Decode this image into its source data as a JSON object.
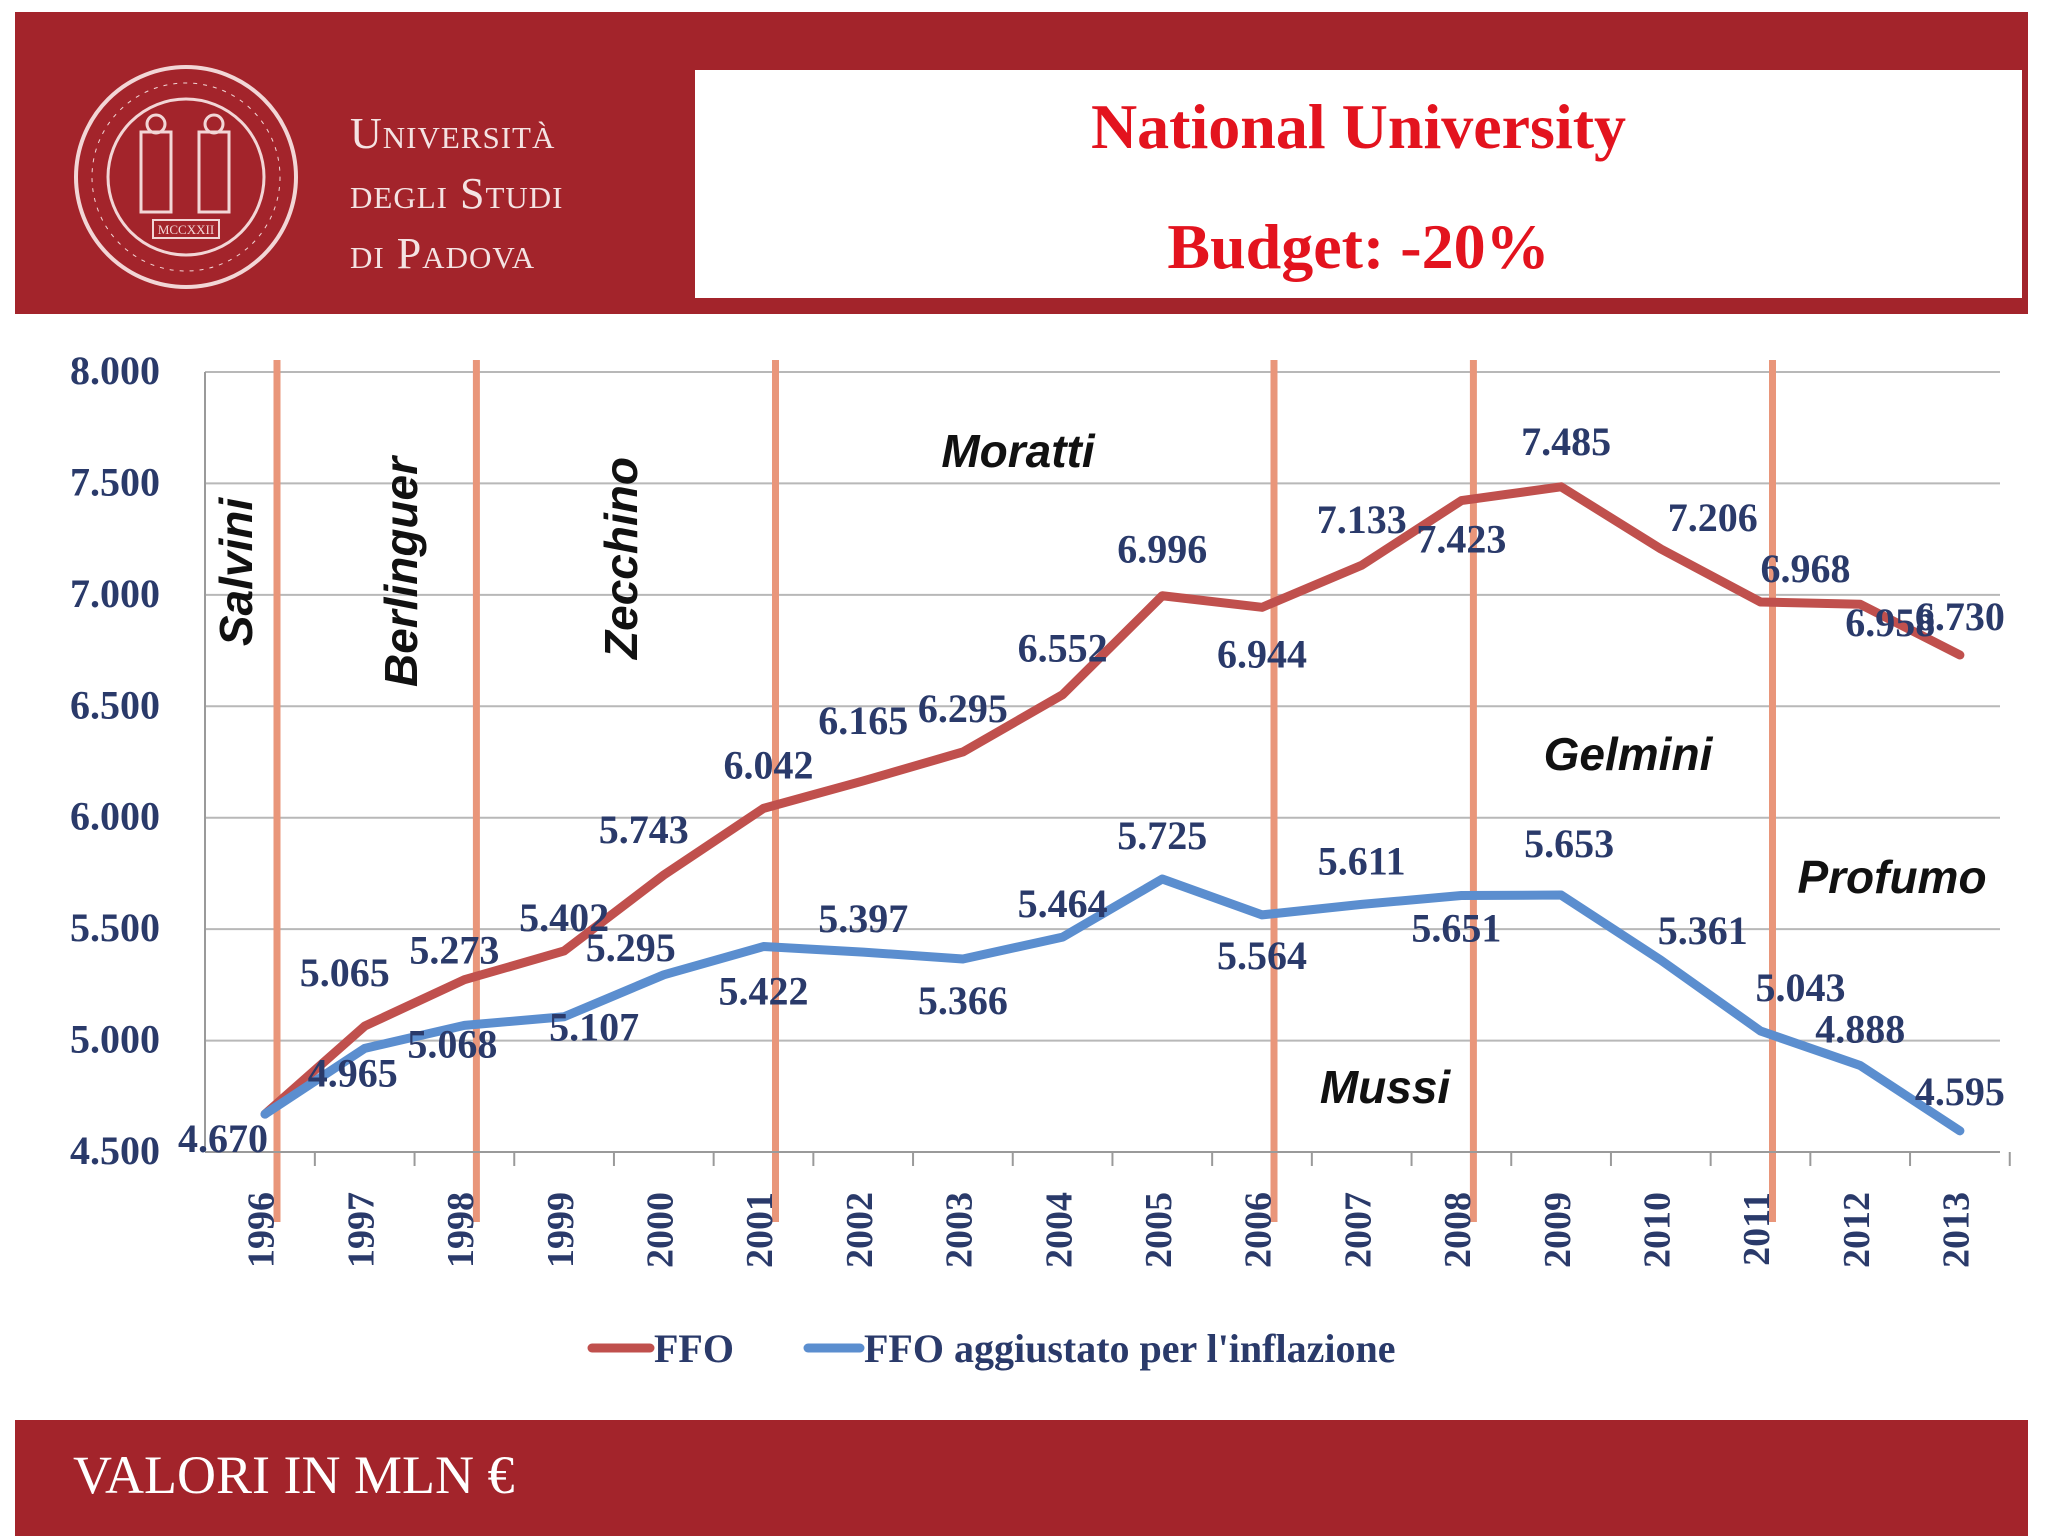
{
  "header": {
    "university_lines": [
      "Università",
      "degli Studi",
      "di Padova"
    ],
    "seal_text": "MCCXXII",
    "title_line1": "National University",
    "title_line2": "Budget: -20%"
  },
  "colors": {
    "brand_red": "#a3242b",
    "title_red": "#e3131e",
    "ffo": "#c0504d",
    "ffo_real": "#5b8ecf",
    "label": "#2a3a6a",
    "minister_line": "#e9967a"
  },
  "chart_data": {
    "type": "line",
    "categories": [
      "1996",
      "1997",
      "1998",
      "1999",
      "2000",
      "2001",
      "2002",
      "2003",
      "2004",
      "2005",
      "2006",
      "2007",
      "2008",
      "2009",
      "2010",
      "2011",
      "2012",
      "2013"
    ],
    "ylim": [
      4500,
      8000
    ],
    "yticks": [
      "4.500",
      "5.000",
      "5.500",
      "6.000",
      "6.500",
      "7.000",
      "7.500",
      "8.000"
    ],
    "grid": true,
    "legend_position": "bottom",
    "series": [
      {
        "name": "FFO",
        "values": [
          4670,
          5065,
          5273,
          5402,
          5743,
          6042,
          6165,
          6295,
          6552,
          6996,
          6944,
          7133,
          7423,
          7485,
          7206,
          6968,
          6958,
          6730
        ],
        "labels": [
          "4.670",
          "5.065",
          "5.273",
          "5.402",
          "5.743",
          "6.042",
          "6.165",
          "6.295",
          "6.552",
          "6.996",
          "6.944",
          "7.133",
          "7.423",
          "7.485",
          "7.206",
          "6.968",
          "6.958",
          "6.730"
        ]
      },
      {
        "name": "FFO aggiustato per l'inflazione",
        "values": [
          4670,
          4965,
          5068,
          5107,
          5295,
          5422,
          5397,
          5366,
          5464,
          5725,
          5564,
          5611,
          5651,
          5653,
          5361,
          5043,
          4888,
          4595
        ],
        "labels": [
          "",
          "4.965",
          "5.068",
          "5.107",
          "5.295",
          "5.422",
          "5.397",
          "5.366",
          "5.464",
          "5.725",
          "5.564",
          "5.611",
          "5.651",
          "5.653",
          "5.361",
          "5.043",
          "4.888",
          "4.595"
        ]
      }
    ],
    "minister_boundaries": [
      "1996",
      "1998",
      "2001",
      "2006",
      "2008",
      "2011"
    ],
    "ministers": [
      "Salvini",
      "Berlinguer",
      "Zecchino",
      "Moratti",
      "Mussi",
      "Gelmini",
      "Profumo"
    ]
  },
  "footer": {
    "text": "VALORI IN MLN €"
  }
}
